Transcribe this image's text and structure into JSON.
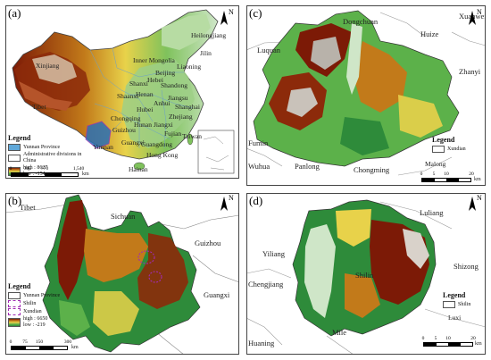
{
  "colors": {
    "high": "#7c1a06",
    "mid": "#c27a1a",
    "yellow": "#e8d24a",
    "green": "#5cb14a",
    "light": "#cfe6c8",
    "study_area_outline": "#a02bb2",
    "province_fill": "#5fa8d9"
  },
  "panel_a": {
    "label": "(a)",
    "places": [
      "Heilongjiang",
      "Jilin",
      "Inner Mongolia",
      "Liaoning",
      "Xinjiang",
      "Beijing",
      "Hebei",
      "Shanxi",
      "Shandong",
      "Henan",
      "Shaanxi",
      "Jiangsu",
      "Anhui",
      "Shanghai",
      "Hubei",
      "Zhejiang",
      "Tibet",
      "Chongqing",
      "Hunan",
      "Jiangxi",
      "Fujian",
      "Guizhou",
      "Yunnan",
      "Guangxi",
      "Guangdong",
      "Taiwan",
      "Hong Kong",
      "Hainan"
    ],
    "legend": {
      "title": "Legend",
      "items": [
        "Yunnan Province",
        "Administrative divisions in China"
      ],
      "ramp_high": "high : 8627",
      "ramp_low": "low : -154"
    },
    "scale": {
      "ticks": [
        "0",
        "385",
        "770",
        "1,540"
      ],
      "unit": "km"
    }
  },
  "panel_b": {
    "label": "(b)",
    "places": [
      "Tibet",
      "Sichuan",
      "Guizhou",
      "Guangxi"
    ],
    "legend": {
      "title": "Legend",
      "items": [
        "Yunnan Province",
        "Shilin",
        "Xundian"
      ],
      "ramp_high": "high : 6650",
      "ramp_low": "low : -219"
    },
    "scale": {
      "ticks": [
        "0",
        "75",
        "150",
        "300"
      ],
      "unit": "km"
    }
  },
  "panel_c": {
    "label": "(c)",
    "places": [
      "Luquan",
      "Dongchuan",
      "Huize",
      "Xuanwei",
      "Zhanyi",
      "Fumin",
      "Wuhua",
      "Panlong",
      "Chongming",
      "Malong"
    ],
    "legend": {
      "title": "Legend",
      "items": [
        "Xundian"
      ]
    },
    "scale": {
      "ticks": [
        "0",
        "5",
        "10",
        "20"
      ],
      "unit": "km"
    }
  },
  "panel_d": {
    "label": "(d)",
    "places": [
      "Luliang",
      "Yiliang",
      "Chengjiang",
      "Shilin",
      "Shizong",
      "Huaning",
      "Mile",
      "Luxi"
    ],
    "legend": {
      "title": "Legend",
      "items": [
        "Shilin"
      ]
    },
    "scale": {
      "ticks": [
        "0",
        "5",
        "10",
        "20"
      ],
      "unit": "km"
    }
  },
  "north_letter": "N"
}
